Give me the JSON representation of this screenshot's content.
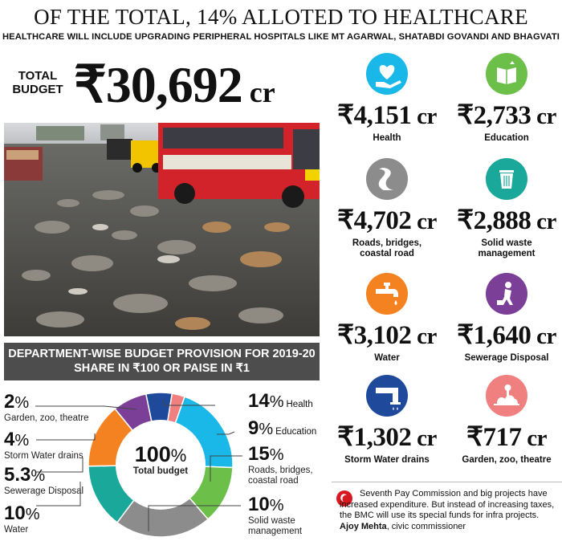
{
  "headline": "OF THE TOTAL, 14% ALLOTED TO HEALTHCARE",
  "subhead": "HEALTHCARE WILL INCLUDE UPGRADING PERIPHERAL HOSPITALS LIKE MT AGARWAL, SHATABDI GOVANDI AND BHAGVATI",
  "total_budget": {
    "label_line1": "TOTAL",
    "label_line2": "BUDGET",
    "value": "₹30,692",
    "unit": " cr"
  },
  "department_banner": {
    "line1": "DEPARTMENT-WISE BUDGET PROVISION FOR 2019-20",
    "line2": "SHARE IN ₹100 OR PAISE IN ₹1"
  },
  "chart_data": {
    "type": "pie",
    "center_value": "100",
    "center_symbol": "%",
    "center_label": "Total budget",
    "slices": [
      {
        "value": "2",
        "symbol": "%",
        "label": "Garden, zoo, theatre",
        "color": "#f08080"
      },
      {
        "value": "14",
        "symbol": "%",
        "label": "Health",
        "color": "#19b8e8"
      },
      {
        "value": "9",
        "symbol": "%",
        "label": "Education",
        "color": "#6cc04a"
      },
      {
        "value": "15",
        "symbol": "%",
        "label": "Roads, bridges,",
        "label2": "coastal road",
        "color": "#8c8c8c"
      },
      {
        "value": "10",
        "symbol": "%",
        "label": "Solid waste",
        "label2": "management",
        "color": "#19a89a"
      },
      {
        "value": "10",
        "symbol": "%",
        "label": "Water",
        "color": "#f58220"
      },
      {
        "value": "5.3",
        "symbol": "%",
        "label": "Sewerage Disposal",
        "color": "#7b3f98"
      },
      {
        "value": "4",
        "symbol": "%",
        "label": "Storm Water drains",
        "color": "#1f4a9c"
      }
    ]
  },
  "departments": [
    {
      "amount": "₹4,151",
      "unit": " cr",
      "label": "Health",
      "icon": "heart-hand-icon",
      "color": "#19b8e8"
    },
    {
      "amount": "₹2,733",
      "unit": " cr",
      "label": "Education",
      "icon": "book-icon",
      "color": "#6cc04a"
    },
    {
      "amount": "₹4,702",
      "unit": " cr",
      "label": "Roads, bridges,",
      "label2": "coastal road",
      "icon": "road-icon",
      "color": "#8c8c8c"
    },
    {
      "amount": "₹2,888",
      "unit": " cr",
      "label": "Solid waste",
      "label2": "management",
      "icon": "trash-bin-icon",
      "color": "#19a89a"
    },
    {
      "amount": "₹3,102",
      "unit": " cr",
      "label": "Water",
      "icon": "water-tap-icon",
      "color": "#f58220"
    },
    {
      "amount": "₹1,640",
      "unit": " cr",
      "label": "Sewerage Disposal",
      "icon": "sewer-worker-icon",
      "color": "#7b3f98"
    },
    {
      "amount": "₹1,302",
      "unit": " cr",
      "label": "Storm Water drains",
      "icon": "drain-pipe-icon",
      "color": "#1f4a9c"
    },
    {
      "amount": "₹717",
      "unit": " cr",
      "label": "Garden, zoo, theatre",
      "icon": "garden-icon",
      "color": "#f08080"
    }
  ],
  "quote": {
    "text": "Seventh Pay Commission and big projects have increased expenditure. But instead of increasing taxes, the BMC will use its special funds for infra projects.",
    "author": "Ajoy Mehta",
    "role": ", civic commissioner"
  }
}
